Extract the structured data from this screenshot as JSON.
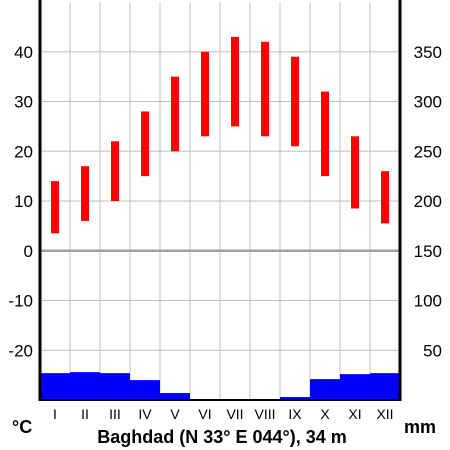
{
  "chart_data": {
    "type": "bar",
    "title": "Baghdad (N 33° E 044°), 34 m",
    "left_unit": "°C",
    "right_unit": "mm",
    "categories": [
      "I",
      "II",
      "III",
      "IV",
      "V",
      "VI",
      "VII",
      "VIII",
      "IX",
      "X",
      "XI",
      "XII"
    ],
    "temperature": {
      "min": [
        3.5,
        6,
        10,
        15,
        20,
        23,
        25,
        23,
        21,
        15,
        8.5,
        5.5
      ],
      "max": [
        14,
        17,
        22,
        28,
        35,
        40,
        43,
        42,
        39,
        32,
        23,
        16
      ]
    },
    "precipitation": [
      27,
      28,
      27,
      20,
      7,
      0,
      0,
      0,
      3,
      21,
      26,
      27
    ],
    "left_axis": {
      "min": -30,
      "max": 50,
      "ticks": [
        -20,
        -10,
        0,
        10,
        20,
        30,
        40
      ]
    },
    "right_axis": {
      "min": 0,
      "max": 400,
      "ticks": [
        50,
        100,
        150,
        200,
        250,
        300,
        350
      ]
    },
    "colors": {
      "temperature": "#ff0000",
      "precipitation": "#0000ff",
      "grid": "#c0c0c0",
      "zero_line": "#a0a0a0"
    },
    "grid": true
  }
}
